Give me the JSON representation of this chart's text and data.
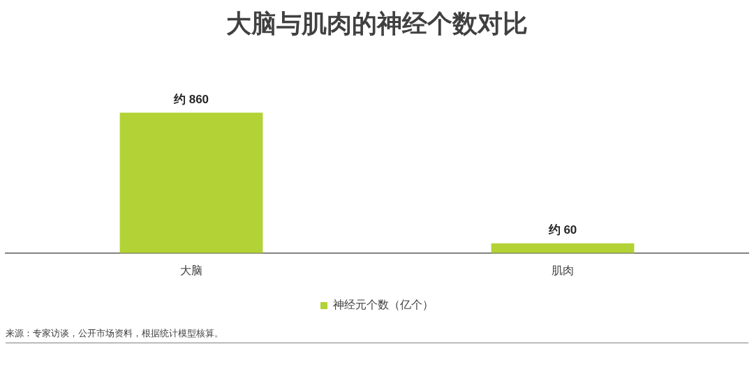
{
  "chart_data": {
    "type": "bar",
    "title": "大脑与肌肉的神经个数对比",
    "categories": [
      "大脑",
      "肌肉"
    ],
    "series": [
      {
        "name": "神经元个数（亿个）",
        "color": "#b2d235",
        "values": [
          860,
          60
        ],
        "value_labels": [
          "约 860",
          "约 60"
        ]
      }
    ],
    "legend": "bottom",
    "grid": false,
    "annotations": [
      "来源：专家访谈，公开市场资料，根据统计模型核算。"
    ]
  }
}
